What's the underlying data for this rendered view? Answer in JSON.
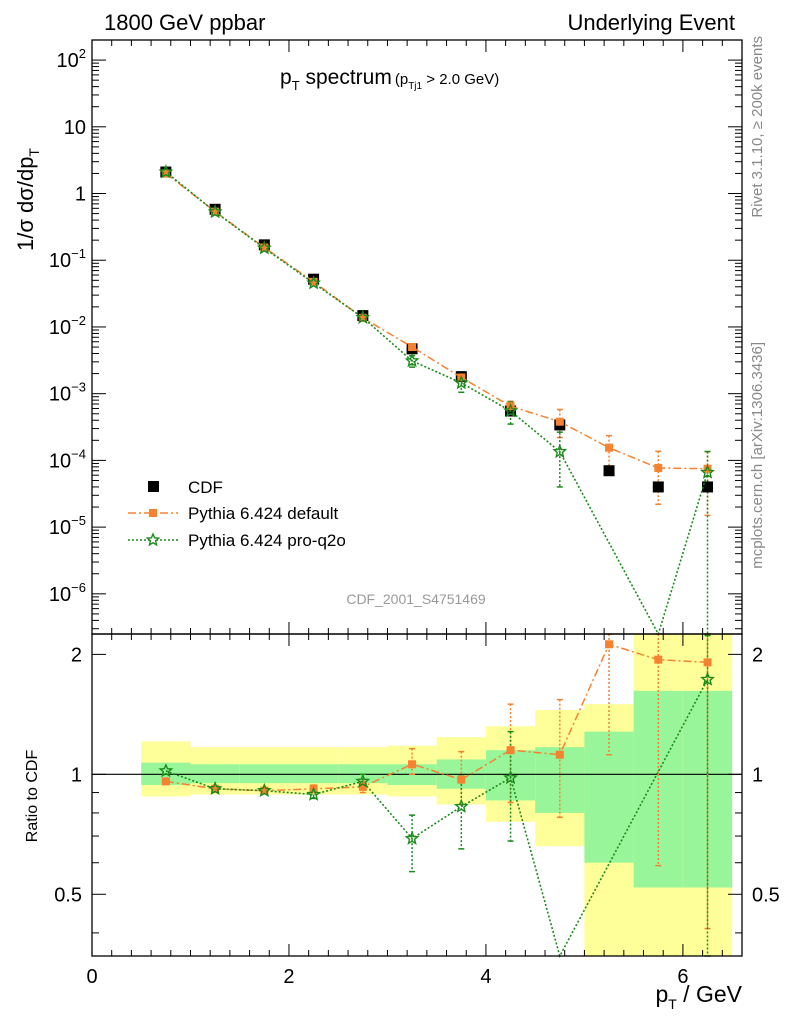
{
  "header": {
    "left": "1800 GeV ppbar",
    "right": "Underlying Event"
  },
  "side_labels": {
    "rivet": "Rivet 3.1.10, ≥ 200k events",
    "mcplots": "mcplots.cern.ch [arXiv:1306.3436]"
  },
  "colors": {
    "cdf": "#000000",
    "default": "#f58231",
    "proq2o": "#1b8a1b",
    "band_outer": "#ffff99",
    "band_inner": "#99f599"
  },
  "chart_data": [
    {
      "type": "scatter",
      "title_main": "p",
      "title_main_sub": "T",
      "title_main_rest": " spectrum",
      "title_cut_open": "(p",
      "title_cut_sub": "Tj1",
      "title_cut_rest": " > 2.0 GeV)",
      "ylabel": "1/σ dσ/dp",
      "ylabel_sub": "T",
      "yscale": "log",
      "xlim": [
        0,
        6.6
      ],
      "ylim": [
        2.5e-07,
        200
      ],
      "yticks": [
        {
          "v": 100,
          "m": "10",
          "e": "2"
        },
        {
          "v": 10,
          "m": "10",
          "e": ""
        },
        {
          "v": 1,
          "m": "1",
          "e": ""
        },
        {
          "v": 0.1,
          "m": "10",
          "e": "−1"
        },
        {
          "v": 0.01,
          "m": "10",
          "e": "−2"
        },
        {
          "v": 0.001,
          "m": "10",
          "e": "−3"
        },
        {
          "v": 0.0001,
          "m": "10",
          "e": "−4"
        },
        {
          "v": 1e-05,
          "m": "10",
          "e": "−5"
        },
        {
          "v": 1e-06,
          "m": "10",
          "e": "−6"
        }
      ],
      "watermark": "CDF_2001_S4751469",
      "legend": [
        "CDF",
        "Pythia 6.424 default",
        "Pythia 6.424 pro-q2o"
      ],
      "legend_position": "lower-left",
      "series": [
        {
          "name": "CDF",
          "x": [
            0.75,
            1.25,
            1.75,
            2.25,
            2.75,
            3.25,
            3.75,
            4.25,
            4.75,
            5.25,
            5.75,
            6.25
          ],
          "y": [
            2.1,
            0.58,
            0.17,
            0.052,
            0.0148,
            0.0047,
            0.0018,
            0.00055,
            0.00034,
            7e-05,
            4e-05,
            4e-05
          ]
        },
        {
          "name": "Pythia 6.424 default",
          "x": [
            0.75,
            1.25,
            1.75,
            2.25,
            2.75,
            3.25,
            3.75,
            4.25,
            4.75,
            5.25,
            5.75,
            6.25
          ],
          "y": [
            2.0,
            0.535,
            0.155,
            0.0475,
            0.0137,
            0.005,
            0.00175,
            0.00065,
            0.00038,
            0.000155,
            7.7e-05,
            7.5e-05
          ],
          "yerr_lo": [
            0,
            0,
            0,
            0,
            0,
            0.0006,
            0.0002,
            0.00012,
            0.00016,
            8e-05,
            5.5e-05,
            6e-05
          ],
          "yerr_hi": [
            0,
            0,
            0,
            0,
            0,
            0.0006,
            0.0002,
            0.00012,
            0.0002,
            8e-05,
            6e-05,
            6e-05
          ]
        },
        {
          "name": "Pythia 6.424 pro-q2o",
          "x": [
            0.75,
            1.25,
            1.75,
            2.25,
            2.75,
            3.25,
            3.75,
            4.25,
            4.75,
            5.75,
            6.25
          ],
          "y": [
            2.1,
            0.53,
            0.152,
            0.0455,
            0.0138,
            0.0031,
            0.00145,
            0.00055,
            0.000135,
            1e-07,
            6.6e-05
          ],
          "yerr_lo": [
            0,
            0,
            0,
            0,
            0,
            0.0006,
            0.0004,
            0.0002,
            9.5e-05,
            0,
            6.59e-05
          ],
          "yerr_hi": [
            0,
            0,
            0,
            0,
            0,
            0.0006,
            0.0004,
            0.0002,
            0.00013,
            0,
            7e-05
          ]
        }
      ]
    },
    {
      "type": "scatter",
      "ylabel": "Ratio to CDF",
      "xlabel": "p",
      "xlabel_sub": "T",
      "xlabel_rest": " / GeV",
      "xlim": [
        0,
        6.6
      ],
      "ylim": [
        0.35,
        2.25
      ],
      "xticks": [
        0,
        2,
        4,
        6
      ],
      "yticks": [
        0.5,
        1,
        2
      ],
      "reference_line": 1,
      "bands": {
        "x_edges": [
          0.5,
          1.0,
          1.5,
          2.0,
          2.5,
          3.0,
          3.5,
          4.0,
          4.5,
          5.0,
          5.5,
          6.0,
          6.5
        ],
        "outer_lo": [
          0.88,
          0.89,
          0.89,
          0.89,
          0.89,
          0.88,
          0.84,
          0.76,
          0.66,
          0.35,
          0.35,
          0.35
        ],
        "outer_hi": [
          1.21,
          1.17,
          1.17,
          1.17,
          1.17,
          1.18,
          1.24,
          1.32,
          1.45,
          1.5,
          2.25,
          2.25
        ],
        "inner_lo": [
          0.94,
          0.95,
          0.95,
          0.95,
          0.95,
          0.94,
          0.92,
          0.86,
          0.8,
          0.6,
          0.52,
          0.52
        ],
        "inner_hi": [
          1.07,
          1.06,
          1.06,
          1.06,
          1.06,
          1.06,
          1.09,
          1.15,
          1.17,
          1.28,
          1.62,
          1.62
        ]
      },
      "series": [
        {
          "name": "Pythia 6.424 default",
          "x": [
            0.75,
            1.25,
            1.75,
            2.25,
            2.75,
            3.25,
            3.75,
            4.25,
            4.75,
            5.25,
            5.75,
            6.25
          ],
          "y": [
            0.96,
            0.92,
            0.91,
            0.92,
            0.93,
            1.06,
            0.97,
            1.15,
            1.12,
            2.12,
            1.94,
            1.91
          ],
          "yerr_lo": [
            0,
            0,
            0,
            0.02,
            0.03,
            0.06,
            0.13,
            0.3,
            0.34,
            1.0,
            1.35,
            1.5
          ],
          "yerr_hi": [
            0,
            0,
            0,
            0.02,
            0.03,
            0.1,
            0.17,
            0.35,
            0.42,
            0.3,
            0.4,
            0.4
          ]
        },
        {
          "name": "Pythia 6.424 pro-q2o",
          "x": [
            0.75,
            1.25,
            1.75,
            2.25,
            2.75,
            3.25,
            3.75,
            4.25,
            4.75,
            6.25
          ],
          "y": [
            1.02,
            0.92,
            0.91,
            0.89,
            0.96,
            0.69,
            0.83,
            0.98,
            0.31,
            1.73
          ],
          "yerr_lo": [
            0,
            0,
            0,
            0.02,
            0.04,
            0.12,
            0.18,
            0.3,
            0,
            1.5
          ],
          "yerr_hi": [
            0,
            0,
            0,
            0.02,
            0.04,
            0.1,
            0.16,
            0.3,
            0,
            0.5
          ]
        }
      ]
    }
  ]
}
